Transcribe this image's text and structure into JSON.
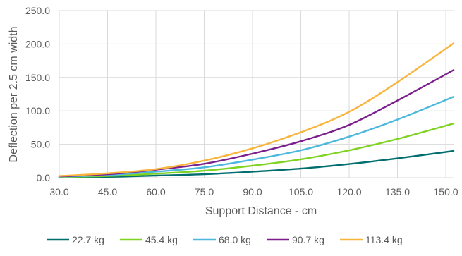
{
  "chart_data": {
    "type": "line",
    "title": "",
    "xlabel": "Support Distance - cm",
    "ylabel": "Deflection per 2.5 cm width",
    "xlim": [
      30,
      152.4
    ],
    "ylim": [
      0,
      250
    ],
    "x_ticks": [
      "30.0",
      "45.0",
      "60.0",
      "75.0",
      "90.0",
      "105.0",
      "120.0",
      "135.0",
      "150.0"
    ],
    "x_tick_values": [
      30,
      45,
      60,
      75,
      90,
      105,
      120,
      135,
      150
    ],
    "y_ticks": [
      "0.0",
      "50.0",
      "100.0",
      "150.0",
      "200.0",
      "250.0"
    ],
    "y_tick_values": [
      0,
      50,
      100,
      150,
      200,
      250
    ],
    "grid": true,
    "legend_position": "bottom",
    "x": [
      30,
      45,
      60,
      75,
      90,
      105,
      120,
      135,
      152.4
    ],
    "series": [
      {
        "name": "22.7 kg",
        "color": "#006e6e",
        "values": [
          0.5,
          1.2,
          3.1,
          5.2,
          9.0,
          13.6,
          20.5,
          29.0,
          40.0
        ]
      },
      {
        "name": "45.4 kg",
        "color": "#7ed321",
        "values": [
          1.0,
          2.6,
          6.0,
          10.5,
          18.0,
          27.5,
          41.0,
          58.0,
          81.0
        ]
      },
      {
        "name": "68.0 kg",
        "color": "#4db8dd",
        "values": [
          1.5,
          3.9,
          9.0,
          15.5,
          27.0,
          41.0,
          61.5,
          87.0,
          121.0
        ]
      },
      {
        "name": "90.7 kg",
        "color": "#7b1f8e",
        "values": [
          2.0,
          5.2,
          12.0,
          20.8,
          36.0,
          54.5,
          79.0,
          115.5,
          161.0
        ]
      },
      {
        "name": "113.4 kg",
        "color": "#f9b43c",
        "values": [
          2.5,
          6.5,
          12.8,
          25.5,
          44.0,
          68.0,
          98.5,
          143.0,
          201.0
        ]
      }
    ]
  }
}
